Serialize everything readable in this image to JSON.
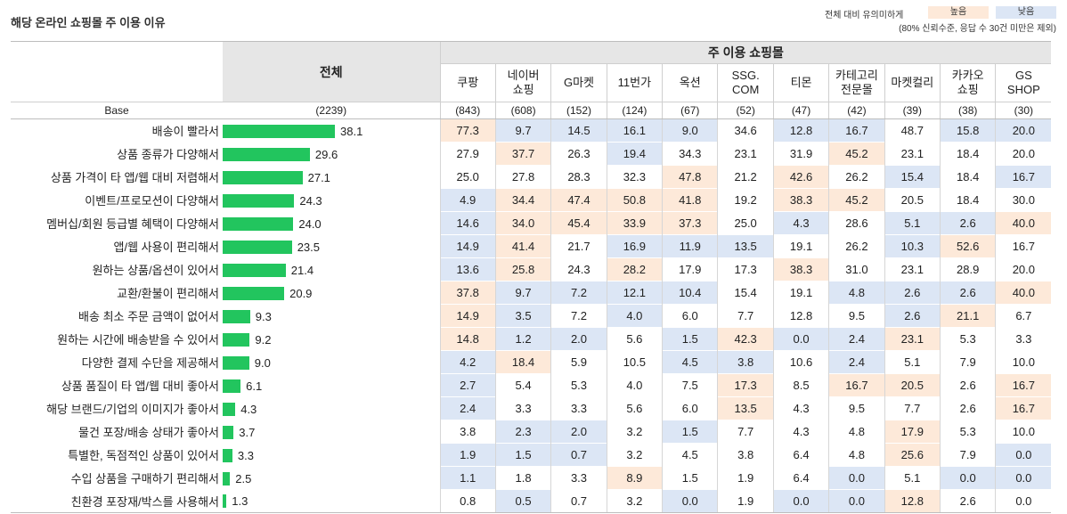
{
  "title": "해당 온라인 쇼핑몰 주 이용 이유",
  "legend": {
    "note": "전체 대비 유의미하게",
    "high": "높음",
    "low": "낮음",
    "footnote": "(80% 신뢰수준, 응답 수 30건 미만은 제외)",
    "high_color": "#fde9d9",
    "low_color": "#dce6f5",
    "bar_color": "#22c55e"
  },
  "chart_data": {
    "type": "table",
    "total_header": "전체",
    "group_header": "주 이용 쇼핑몰",
    "base_label": "Base",
    "base_total": "(2239)",
    "columns": [
      {
        "name": "쿠팡",
        "base": "(843)"
      },
      {
        "name": "네이버\n쇼핑",
        "base": "(608)"
      },
      {
        "name": "G마켓",
        "base": "(152)"
      },
      {
        "name": "11번가",
        "base": "(124)"
      },
      {
        "name": "옥션",
        "base": "(67)"
      },
      {
        "name": "SSG.\nCOM",
        "base": "(52)"
      },
      {
        "name": "티몬",
        "base": "(47)"
      },
      {
        "name": "카테고리\n전문몰",
        "base": "(42)"
      },
      {
        "name": "마켓컬리",
        "base": "(39)"
      },
      {
        "name": "카카오\n쇼핑",
        "base": "(38)"
      },
      {
        "name": "GS\nSHOP",
        "base": "(30)"
      }
    ],
    "bar_max": 38.1,
    "rows": [
      {
        "label": "배송이 빨라서",
        "total": "38.1",
        "values": [
          "77.3",
          "9.7",
          "14.5",
          "16.1",
          "9.0",
          "34.6",
          "12.8",
          "16.7",
          "48.7",
          "15.8",
          "20.0"
        ],
        "sig": [
          "h",
          "l",
          "l",
          "l",
          "l",
          "",
          "l",
          "l",
          "",
          "l",
          "l"
        ]
      },
      {
        "label": "상품 종류가 다양해서",
        "total": "29.6",
        "values": [
          "27.9",
          "37.7",
          "26.3",
          "19.4",
          "34.3",
          "23.1",
          "31.9",
          "45.2",
          "23.1",
          "18.4",
          "20.0"
        ],
        "sig": [
          "",
          "h",
          "",
          "l",
          "",
          "",
          "",
          "h",
          "",
          "",
          ""
        ]
      },
      {
        "label": "상품 가격이 타 앱/웹 대비 저렴해서",
        "total": "27.1",
        "values": [
          "25.0",
          "27.8",
          "28.3",
          "32.3",
          "47.8",
          "21.2",
          "42.6",
          "26.2",
          "15.4",
          "18.4",
          "16.7"
        ],
        "sig": [
          "",
          "",
          "",
          "",
          "h",
          "",
          "h",
          "",
          "l",
          "",
          "l"
        ]
      },
      {
        "label": "이벤트/프로모션이 다양해서",
        "total": "24.3",
        "values": [
          "4.9",
          "34.4",
          "47.4",
          "50.8",
          "41.8",
          "19.2",
          "38.3",
          "45.2",
          "20.5",
          "18.4",
          "30.0"
        ],
        "sig": [
          "l",
          "h",
          "h",
          "h",
          "h",
          "",
          "h",
          "h",
          "",
          "",
          ""
        ]
      },
      {
        "label": "멤버십/회원 등급별 혜택이 다양해서",
        "total": "24.0",
        "values": [
          "14.6",
          "34.0",
          "45.4",
          "33.9",
          "37.3",
          "25.0",
          "4.3",
          "28.6",
          "5.1",
          "2.6",
          "40.0"
        ],
        "sig": [
          "l",
          "h",
          "h",
          "h",
          "h",
          "",
          "l",
          "",
          "l",
          "l",
          "h"
        ]
      },
      {
        "label": "앱/웹 사용이 편리해서",
        "total": "23.5",
        "values": [
          "14.9",
          "41.4",
          "21.7",
          "16.9",
          "11.9",
          "13.5",
          "19.1",
          "26.2",
          "10.3",
          "52.6",
          "16.7"
        ],
        "sig": [
          "l",
          "h",
          "",
          "l",
          "l",
          "l",
          "",
          "",
          "l",
          "h",
          ""
        ]
      },
      {
        "label": "원하는 상품/옵션이 있어서",
        "total": "21.4",
        "values": [
          "13.6",
          "25.8",
          "24.3",
          "28.2",
          "17.9",
          "17.3",
          "38.3",
          "31.0",
          "23.1",
          "28.9",
          "20.0"
        ],
        "sig": [
          "l",
          "h",
          "",
          "h",
          "",
          "",
          "h",
          "",
          "",
          "",
          ""
        ]
      },
      {
        "label": "교환/환불이 편리해서",
        "total": "20.9",
        "values": [
          "37.8",
          "9.7",
          "7.2",
          "12.1",
          "10.4",
          "15.4",
          "19.1",
          "4.8",
          "2.6",
          "2.6",
          "40.0"
        ],
        "sig": [
          "h",
          "l",
          "l",
          "l",
          "l",
          "",
          "",
          "l",
          "l",
          "l",
          "h"
        ]
      },
      {
        "label": "배송 최소 주문 금액이 없어서",
        "total": "9.3",
        "values": [
          "14.9",
          "3.5",
          "7.2",
          "4.0",
          "6.0",
          "7.7",
          "12.8",
          "9.5",
          "2.6",
          "21.1",
          "6.7"
        ],
        "sig": [
          "h",
          "l",
          "",
          "l",
          "",
          "",
          "",
          "",
          "l",
          "h",
          ""
        ]
      },
      {
        "label": "원하는 시간에 배송받을 수 있어서",
        "total": "9.2",
        "values": [
          "14.8",
          "1.2",
          "2.0",
          "5.6",
          "1.5",
          "42.3",
          "0.0",
          "2.4",
          "23.1",
          "5.3",
          "3.3"
        ],
        "sig": [
          "h",
          "l",
          "l",
          "",
          "l",
          "h",
          "l",
          "l",
          "h",
          "",
          ""
        ]
      },
      {
        "label": "다양한 결제 수단을 제공해서",
        "total": "9.0",
        "values": [
          "4.2",
          "18.4",
          "5.9",
          "10.5",
          "4.5",
          "3.8",
          "10.6",
          "2.4",
          "5.1",
          "7.9",
          "10.0"
        ],
        "sig": [
          "l",
          "h",
          "",
          "",
          "l",
          "l",
          "",
          "l",
          "",
          "",
          ""
        ]
      },
      {
        "label": "상품 품질이 타 앱/웹 대비 좋아서",
        "total": "6.1",
        "values": [
          "2.7",
          "5.4",
          "5.3",
          "4.0",
          "7.5",
          "17.3",
          "8.5",
          "16.7",
          "20.5",
          "2.6",
          "16.7"
        ],
        "sig": [
          "l",
          "",
          "",
          "",
          "",
          "h",
          "",
          "h",
          "h",
          "",
          "h"
        ]
      },
      {
        "label": "해당 브랜드/기업의 이미지가 좋아서",
        "total": "4.3",
        "values": [
          "2.4",
          "3.3",
          "3.3",
          "5.6",
          "6.0",
          "13.5",
          "4.3",
          "9.5",
          "7.7",
          "2.6",
          "16.7"
        ],
        "sig": [
          "l",
          "",
          "",
          "",
          "",
          "h",
          "",
          "",
          "",
          "",
          "h"
        ]
      },
      {
        "label": "물건 포장/배송 상태가 좋아서",
        "total": "3.7",
        "values": [
          "3.8",
          "2.3",
          "2.0",
          "3.2",
          "1.5",
          "7.7",
          "4.3",
          "4.8",
          "17.9",
          "5.3",
          "10.0"
        ],
        "sig": [
          "",
          "l",
          "l",
          "",
          "l",
          "",
          "",
          "",
          "h",
          "",
          ""
        ]
      },
      {
        "label": "특별한, 독점적인 상품이 있어서",
        "total": "3.3",
        "values": [
          "1.9",
          "1.5",
          "0.7",
          "3.2",
          "4.5",
          "3.8",
          "6.4",
          "4.8",
          "25.6",
          "7.9",
          "0.0"
        ],
        "sig": [
          "l",
          "l",
          "l",
          "",
          "",
          "",
          "",
          "",
          "h",
          "",
          "l"
        ]
      },
      {
        "label": "수입 상품을 구매하기 편리해서",
        "total": "2.5",
        "values": [
          "1.1",
          "1.8",
          "3.3",
          "8.9",
          "1.5",
          "1.9",
          "6.4",
          "0.0",
          "5.1",
          "0.0",
          "0.0"
        ],
        "sig": [
          "l",
          "",
          "",
          "h",
          "",
          "",
          "",
          "l",
          "",
          "l",
          "l"
        ]
      },
      {
        "label": "친환경 포장재/박스를 사용해서",
        "total": "1.3",
        "values": [
          "0.8",
          "0.5",
          "0.7",
          "3.2",
          "0.0",
          "1.9",
          "0.0",
          "0.0",
          "12.8",
          "2.6",
          "0.0"
        ],
        "sig": [
          "",
          "l",
          "",
          "",
          "l",
          "",
          "l",
          "l",
          "h",
          "",
          ""
        ]
      }
    ]
  }
}
